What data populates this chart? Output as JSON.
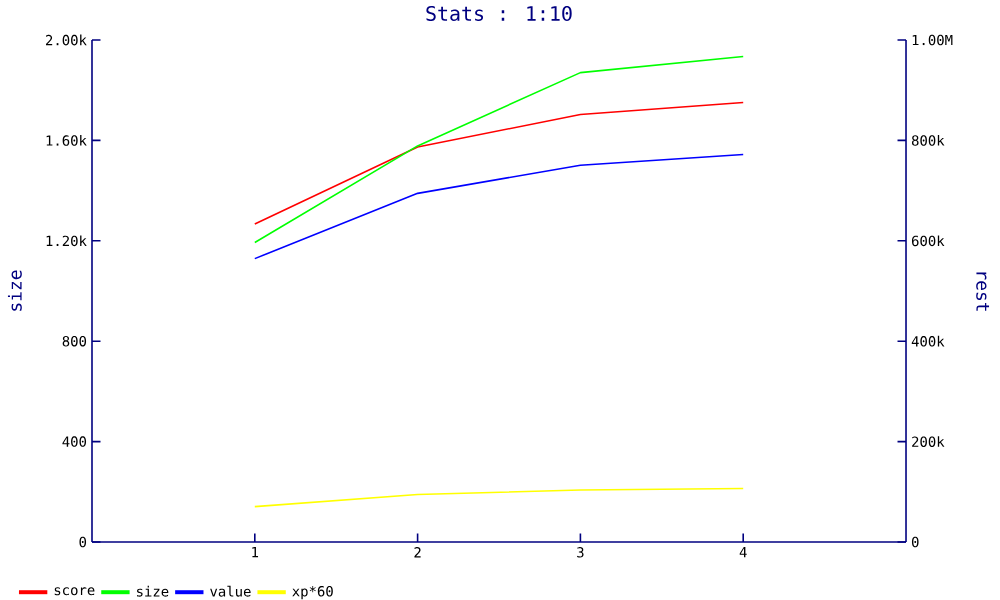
{
  "chart_data": {
    "type": "line",
    "title": "Stats : 1:10",
    "ylabel": "size",
    "y2label": "rest",
    "x": [
      1,
      2,
      3,
      4
    ],
    "series": [
      {
        "name": "score",
        "color": "#ff0000",
        "values": [
          1267,
          1574,
          1703,
          1751
        ]
      },
      {
        "name": "size",
        "color": "#00ff00",
        "values": [
          1193,
          1578,
          1870,
          1934
        ]
      },
      {
        "name": "value",
        "color": "#0000ff",
        "values": [
          1129,
          1389,
          1501,
          1544
        ]
      },
      {
        "name": "xp*60",
        "color": "#ffff00",
        "values": [
          141,
          189,
          207,
          213
        ]
      }
    ],
    "xlim": [
      0,
      5
    ],
    "xticks": [
      1,
      2,
      3,
      4
    ],
    "ylim": [
      0,
      2000
    ],
    "yticks": [
      0,
      400,
      800,
      {
        "value": 1200,
        "label": "1.20k"
      },
      {
        "value": 1600,
        "label": "1.60k"
      },
      {
        "value": 2000,
        "label": "2.00k"
      }
    ],
    "y2lim": [
      0,
      1000000
    ],
    "y2ticks": [
      0,
      {
        "value": 200000,
        "label": "200k"
      },
      {
        "value": 400000,
        "label": "400k"
      },
      {
        "value": 600000,
        "label": "600k"
      },
      {
        "value": 800000,
        "label": "800k"
      },
      {
        "value": 1000000,
        "label": "1.00M"
      }
    ],
    "legend": "bottom left",
    "grid": false,
    "marker": "none",
    "line_style": "solid"
  }
}
